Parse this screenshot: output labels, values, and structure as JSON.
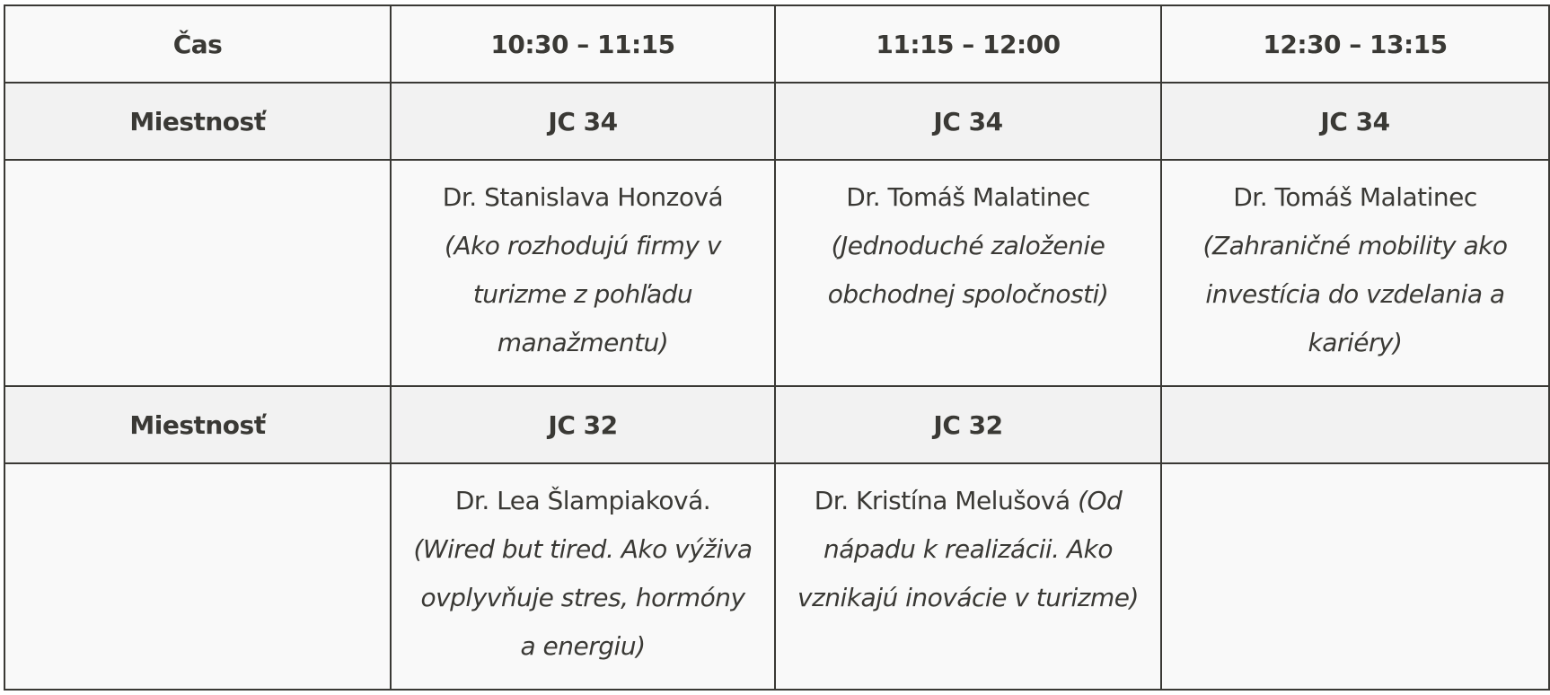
{
  "header": {
    "label": "Čas",
    "times": [
      "10:30 – 11:15",
      "11:15 – 12:00",
      "12:30 – 13:15"
    ]
  },
  "rows": [
    {
      "room_label": "Miestnosť",
      "rooms": [
        "JC 34",
        "JC 34",
        "JC 34"
      ],
      "sessions": [
        {
          "speaker": "Dr. Stanislava Honzová",
          "title": "(Ako rozhodujú firmy v turizme z pohľadu manažmentu)"
        },
        {
          "speaker": "Dr. Tomáš Malatinec",
          "title": "(Jednoduché založenie obchodnej spoločnosti)"
        },
        {
          "speaker": "Dr. Tomáš Malatinec",
          "title": "(Zahraničné mobility ako investícia do vzdelania a kariéry)"
        }
      ]
    },
    {
      "room_label": "Miestnosť",
      "rooms": [
        "JC 32",
        "JC 32",
        ""
      ],
      "sessions": [
        {
          "speaker": "Dr. Lea Šlampiaková.",
          "title": "(Wired but tired. Ako výživa ovplyvňuje stres, hormóny a energiu)"
        },
        {
          "speaker": "Dr. Kristína Melušová",
          "title": "(Od nápadu k realizácii. Ako vznikajú inovácie v turizme)"
        },
        {
          "speaker": "",
          "title": ""
        }
      ]
    }
  ]
}
